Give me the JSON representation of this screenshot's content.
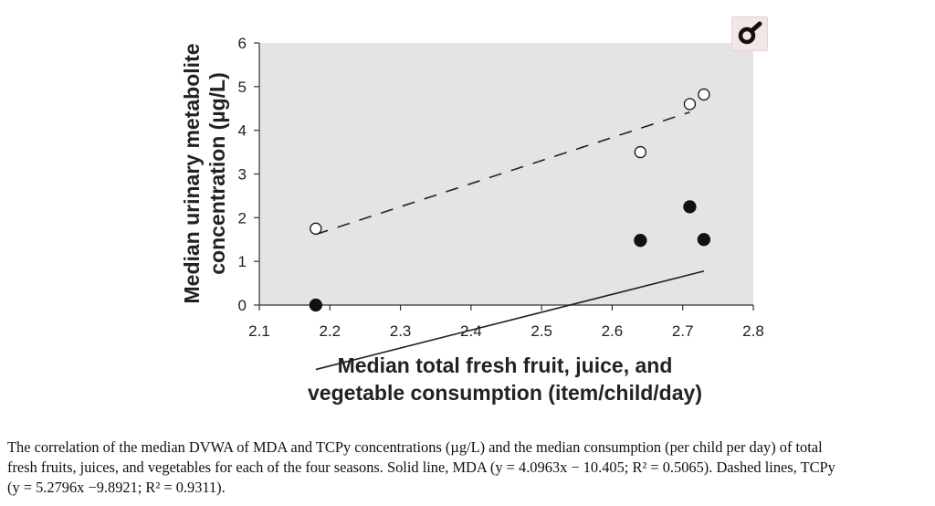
{
  "chart_data": {
    "type": "scatter",
    "xlim": [
      2.1,
      2.8
    ],
    "ylim": [
      0,
      6
    ],
    "x_ticks": [
      "2.1",
      "2.2",
      "2.3",
      "2.4",
      "2.5",
      "2.6",
      "2.7",
      "2.8"
    ],
    "y_ticks": [
      "0",
      "1",
      "2",
      "3",
      "4",
      "5",
      "6"
    ],
    "xlabel_lines": [
      "Median total fresh fruit, juice, and",
      "vegetable consumption (item/child/day)"
    ],
    "ylabel_lines": [
      "Median urinary metabolite",
      "concentration (µg/L)"
    ],
    "grid": false,
    "background": "#e4e4e4",
    "series": [
      {
        "name": "MDA",
        "marker": "filled-circle",
        "line_style": "solid",
        "points": [
          [
            2.18,
            0.0
          ],
          [
            2.64,
            1.48
          ],
          [
            2.71,
            2.25
          ],
          [
            2.73,
            1.5
          ]
        ],
        "fit": {
          "slope": 4.0963,
          "intercept": -10.405,
          "x_range": [
            2.18,
            2.73
          ]
        }
      },
      {
        "name": "TCPy",
        "marker": "open-circle",
        "line_style": "dashed",
        "points": [
          [
            2.18,
            1.75
          ],
          [
            2.64,
            3.5
          ],
          [
            2.71,
            4.6
          ],
          [
            2.73,
            4.82
          ]
        ],
        "fit": {
          "slope": 5.2796,
          "intercept": -9.8921,
          "x_range": [
            2.18,
            2.71
          ]
        }
      }
    ]
  },
  "caption": {
    "line1": "The correlation of the median DVWA of MDA and TCPy concentrations (µg/L) and the median consumption (per child per day) of total",
    "line2": "fresh fruits, juices, and vegetables for each of the four seasons. Solid line, MDA (y = 4.0963x − 10.405; R² = 0.5065). Dashed lines, TCPy",
    "line3": "(y = 5.2796x −9.8921; R² = 0.9311)."
  },
  "zoom_control": {
    "icon": "zoom-icon"
  }
}
